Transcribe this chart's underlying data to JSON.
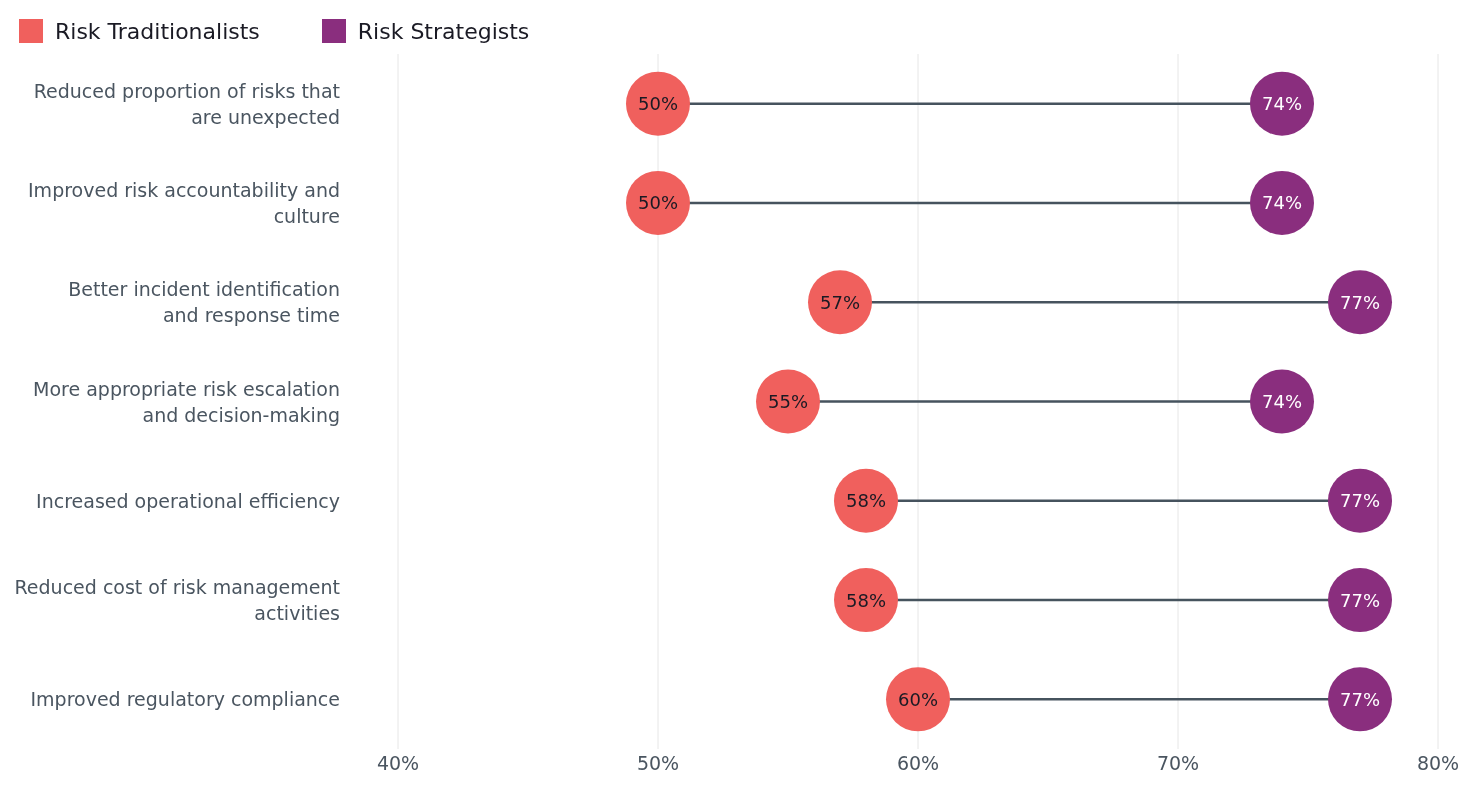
{
  "chart_data": {
    "type": "scatter",
    "orientation": "horizontal",
    "categories": [
      "Reduced proportion of risks that are unexpected",
      "Improved risk accountability and culture",
      "Better incident identification and response time",
      "More appropriate risk escalation and decision-making",
      "Increased operational efficiency",
      "Reduced cost of risk management activities",
      "Improved regulatory compliance"
    ],
    "series": [
      {
        "name": "Risk Traditionalists",
        "color": "#f0605d",
        "values": [
          50,
          50,
          57,
          55,
          58,
          58,
          60
        ],
        "value_labels": [
          "50%",
          "50%",
          "57%",
          "55%",
          "58%",
          "58%",
          "60%"
        ]
      },
      {
        "name": "Risk Strategists",
        "color": "#8a2e7e",
        "values": [
          74,
          74,
          77,
          74,
          77,
          77,
          77
        ],
        "value_labels": [
          "74%",
          "74%",
          "77%",
          "74%",
          "77%",
          "77%",
          "77%"
        ]
      }
    ],
    "xlim": [
      40,
      80
    ],
    "xticks": [
      {
        "value": 40,
        "label": "40%"
      },
      {
        "value": 50,
        "label": "50%"
      },
      {
        "value": 60,
        "label": "60%"
      },
      {
        "value": 70,
        "label": "70%"
      },
      {
        "value": 80,
        "label": "80%"
      }
    ],
    "grid": "x",
    "legend": "top left",
    "marker": "circle"
  }
}
